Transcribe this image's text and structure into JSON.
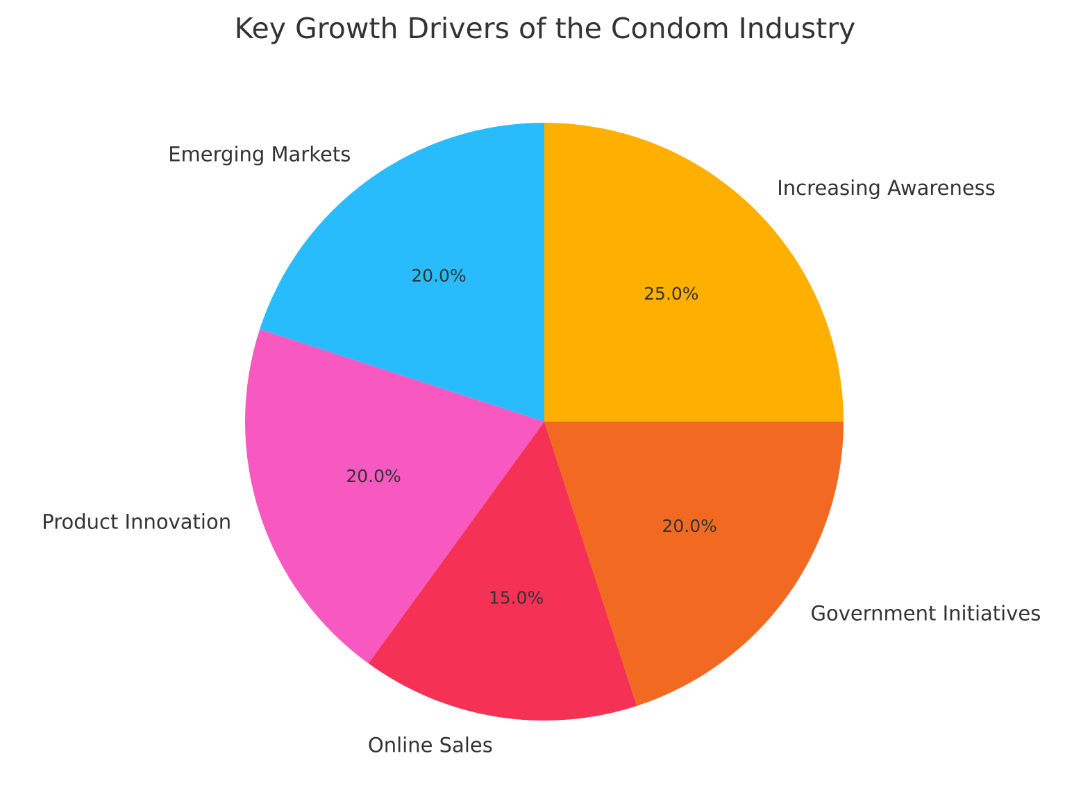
{
  "chart_data": {
    "type": "pie",
    "title": "Key Growth Drivers of the Condom Industry",
    "start_angle_deg": 90,
    "direction": "counterclockwise",
    "slices": [
      {
        "label": "Emerging Markets",
        "value": 20.0,
        "pct_label": "20.0%",
        "color": "#29BCFC"
      },
      {
        "label": "Product Innovation",
        "value": 20.0,
        "pct_label": "20.0%",
        "color": "#F759C0"
      },
      {
        "label": "Online Sales",
        "value": 15.0,
        "pct_label": "15.0%",
        "color": "#F53156"
      },
      {
        "label": "Government Initiatives",
        "value": 20.0,
        "pct_label": "20.0%",
        "color": "#F26A22"
      },
      {
        "label": "Increasing Awareness",
        "value": 25.0,
        "pct_label": "25.0%",
        "color": "#FFAF00"
      }
    ]
  }
}
